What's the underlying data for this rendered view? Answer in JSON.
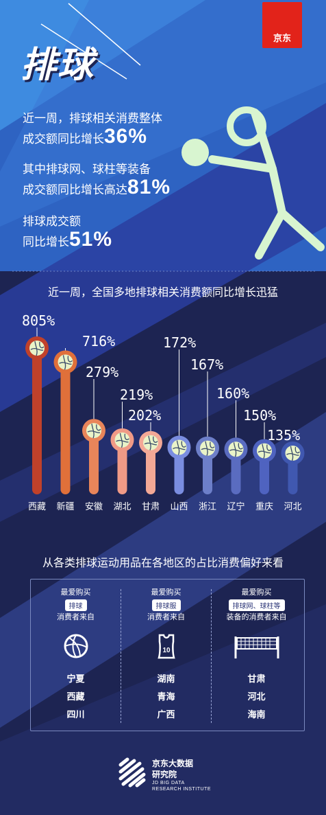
{
  "header": {
    "title": "排球",
    "logo_text": "京东"
  },
  "stats": [
    {
      "line1": "近一周，排球相关消费整体",
      "line2": "成交额同比增长",
      "value": "36%"
    },
    {
      "line1": "其中排球网、球柱等装备",
      "line2": "成交额同比增长高达",
      "value": "81%"
    },
    {
      "line1": "排球成交额",
      "line2": "同比增长",
      "value": "51%"
    }
  ],
  "chart_subtitle": "近一周，全国多地排球相关消费额同比增长迅猛",
  "chart_data": {
    "type": "bar",
    "categories": [
      "西藏",
      "新疆",
      "安徽",
      "湖北",
      "甘肃",
      "山西",
      "浙江",
      "辽宁",
      "重庆",
      "河北"
    ],
    "values": [
      805,
      716,
      279,
      219,
      202,
      172,
      167,
      160,
      150,
      135
    ],
    "value_labels": [
      "805%",
      "716%",
      "279%",
      "219%",
      "202%",
      "172%",
      "167%",
      "160%",
      "150%",
      "135%"
    ],
    "unit": "%",
    "colors": [
      "#c0412a",
      "#e0703a",
      "#e8855a",
      "#f09a86",
      "#f3a896",
      "#7a8de0",
      "#6d7fc9",
      "#5a6cc0",
      "#4f63c0",
      "#4058b0"
    ],
    "title": "",
    "xlabel": "",
    "ylabel": ""
  },
  "preference": {
    "title": "从各类排球运动用品在各地区的占比消费偏好来看",
    "columns": [
      {
        "top": "最爱购买",
        "tag": "排球",
        "bottom": "消费者来自",
        "icon": "volleyball-icon",
        "regions": [
          "宁夏",
          "西藏",
          "四川"
        ]
      },
      {
        "top": "最爱购买",
        "tag": "排球服",
        "bottom": "消费者来自",
        "icon": "jersey-icon",
        "jersey_number": "10",
        "regions": [
          "湖南",
          "青海",
          "广西"
        ]
      },
      {
        "top": "最爱购买",
        "tag": "排球网、球柱等",
        "bottom": "装备的消费者来自",
        "icon": "net-icon",
        "regions": [
          "甘肃",
          "河北",
          "海南"
        ]
      }
    ]
  },
  "footer": {
    "brand_cn_1": "京东大数据",
    "brand_cn_2": "研究院",
    "brand_en_1": "JD BIG DATA",
    "brand_en_2": "RESEARCH INSTITUTE"
  }
}
